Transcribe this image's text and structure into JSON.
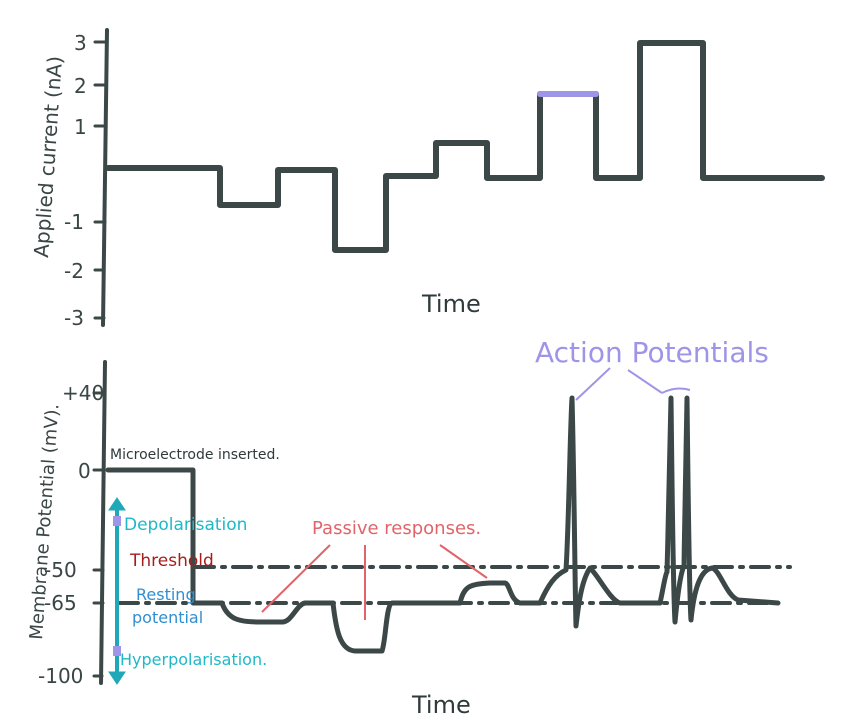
{
  "top_chart": {
    "ylabel": "Applied current (nA)",
    "xlabel": "Time",
    "ticks": [
      "3",
      "2",
      "1",
      "-1",
      "-2",
      "-3"
    ],
    "highlight_color": "#9f95e8",
    "stim_color": "#3c4848"
  },
  "bottom_chart": {
    "ylabel": "Membrane Potential (mV).",
    "xlabel": "Time",
    "ticks": [
      "+40",
      "0",
      "-50",
      "-65",
      "-100"
    ],
    "annotations": {
      "microelectrode": "Microelectrode inserted.",
      "depolarisation": "Depolarisation",
      "threshold": "Threshold",
      "resting": "Resting",
      "potential": "potential",
      "hyperpolarisation": "Hyperpolarisation.",
      "passive": "Passive responses.",
      "action": "Action Potentials"
    },
    "colors": {
      "depolarisation": "#1fb8c8",
      "threshold": "#a51e1e",
      "resting": "#2f8fd0",
      "hyperpolarisation": "#1fb8c8",
      "passive": "#e0646a",
      "action": "#9f95e8",
      "trace": "#3c4848",
      "arrow": "#1fa9b8"
    }
  }
}
